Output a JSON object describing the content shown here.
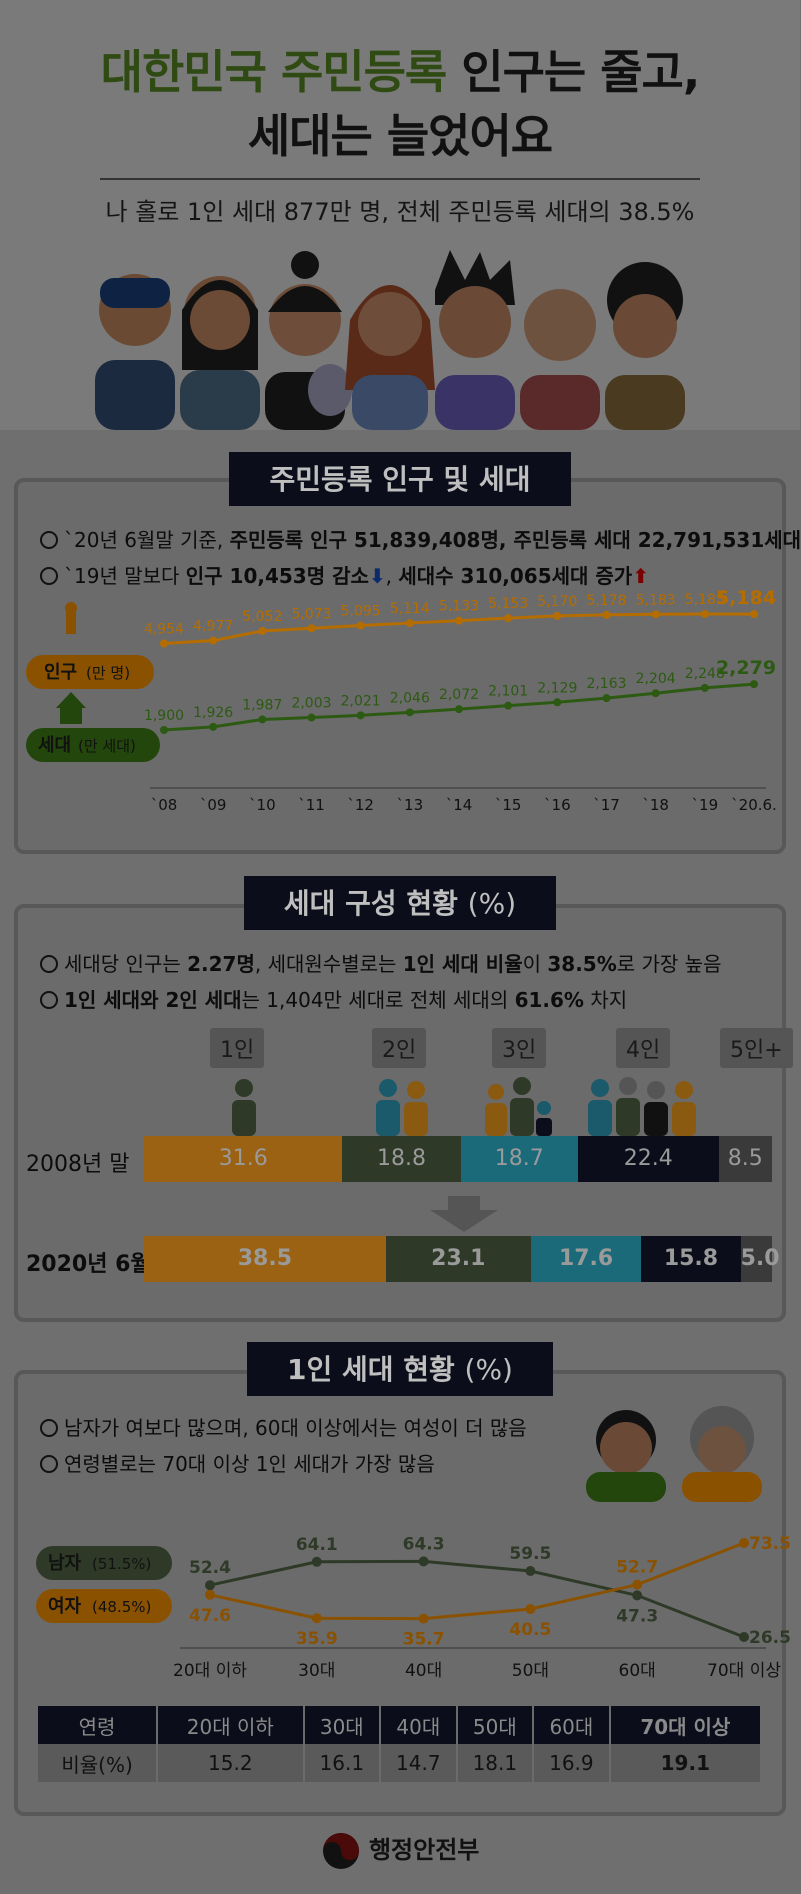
{
  "header": {
    "title_green": "대한민국 주민등록",
    "title_rest": " 인구는 줄고,",
    "title_line2": "세대는 늘었어요",
    "subtitle": "나 홀로 1인 세대 877만 명, 전체 주민등록 세대의 38.5%"
  },
  "section1": {
    "heading": "주민등록 인구 및 세대",
    "line1_pre": "`20년 6월말 기준, ",
    "line1_bold": "주민등록 인구 51,839,408명, 주민등록 세대 22,791,531세대",
    "line2_pre": "`19년 말보다 ",
    "line2_bold1": "인구 10,453명 감소",
    "line2_mid": ", ",
    "line2_bold2": "세대수 310,065세대 증가",
    "pop_label": "인구",
    "pop_unit": "(만 명)",
    "hh_label": "세대",
    "hh_unit": "(만 세대)"
  },
  "section2": {
    "heading": "세대 구성 현황",
    "heading_unit": "(%)",
    "line1_pre": "세대당 인구는 ",
    "line1_b1": "2.27명",
    "line1_mid": ", 세대원수별로는 ",
    "line1_b2": "1인 세대 비율",
    "line1_mid2": "이 ",
    "line1_b3": "38.5%",
    "line1_post": "로 가장 높음",
    "line2_b1": "1인 세대와 2인 세대",
    "line2_post": "는 1,404만 세대로 전체 세대의 ",
    "line2_b2": "61.6%",
    "line2_end": " 차지",
    "row1_label": "2008년 말",
    "row2_label": "2020년 6월"
  },
  "section3": {
    "heading": "1인 세대 현황",
    "heading_unit": "(%)",
    "line1": "남자가 여보다 많으며, 60대 이상에서는 여성이 더 많음",
    "line2": "연령별로는 70대 이상 1인 세대가 가장 많음",
    "male_label": "남자",
    "male_pct": "(51.5%)",
    "female_label": "여자",
    "female_pct": "(48.5%)",
    "table_head": "연령",
    "table_row": "비율(%)",
    "table_values": [
      "15.2",
      "16.1",
      "14.7",
      "18.1",
      "16.9",
      "19.1"
    ]
  },
  "footer": {
    "org": "행정안전부"
  },
  "colors": {
    "pop": "#b56d00",
    "hh": "#2d5a12",
    "c1": "#9a6212",
    "c2": "#2e3a27",
    "c3": "#1a6a7a",
    "c4": "#0b0d1a",
    "c5": "#3a3a3a"
  },
  "chart_data": [
    {
      "type": "line",
      "x": [
        "`08",
        "`09",
        "`10",
        "`11",
        "`12",
        "`13",
        "`14",
        "`15",
        "`16",
        "`17",
        "`18",
        "`19",
        "`20.6."
      ],
      "series": [
        {
          "name": "인구(만 명)",
          "values": [
            4954,
            4977,
            5052,
            5073,
            5095,
            5114,
            5133,
            5153,
            5170,
            5178,
            5183,
            5185,
            5184
          ]
        },
        {
          "name": "세대(만 세대)",
          "values": [
            1900,
            1926,
            1987,
            2003,
            2021,
            2046,
            2072,
            2101,
            2129,
            2163,
            2204,
            2248,
            2279
          ]
        }
      ]
    },
    {
      "type": "bar",
      "stacked": true,
      "orientation": "horizontal",
      "categories": [
        "2008년 말",
        "2020년 6월"
      ],
      "series": [
        {
          "name": "1인",
          "values": [
            31.6,
            38.5
          ]
        },
        {
          "name": "2인",
          "values": [
            18.8,
            23.1
          ]
        },
        {
          "name": "3인",
          "values": [
            18.7,
            17.6
          ]
        },
        {
          "name": "4인",
          "values": [
            22.4,
            15.8
          ]
        },
        {
          "name": "5인+",
          "values": [
            8.5,
            5.0
          ]
        }
      ]
    },
    {
      "type": "line",
      "x": [
        "20대 이하",
        "30대",
        "40대",
        "50대",
        "60대",
        "70대 이상"
      ],
      "series": [
        {
          "name": "남자",
          "values": [
            52.4,
            64.1,
            64.3,
            59.5,
            47.3,
            26.5
          ]
        },
        {
          "name": "여자",
          "values": [
            47.6,
            35.9,
            35.7,
            40.5,
            52.7,
            73.5
          ]
        }
      ]
    }
  ]
}
